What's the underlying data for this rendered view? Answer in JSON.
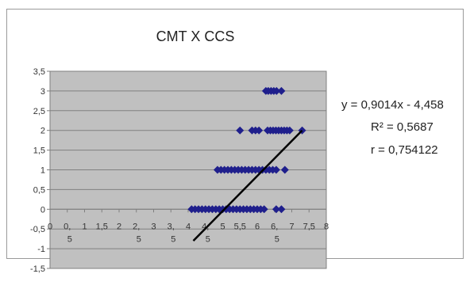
{
  "chart_data": {
    "type": "scatter",
    "title": "CMT X CCS",
    "xlabel": "",
    "ylabel": "",
    "xlim": [
      0,
      8
    ],
    "ylim": [
      -1.5,
      3.5
    ],
    "grid": true,
    "x_tick_labels": [
      {
        "value": 0,
        "line1": "0",
        "line2": ""
      },
      {
        "value": 0.5,
        "line1": "0,",
        "line2": "5"
      },
      {
        "value": 1,
        "line1": "1",
        "line2": ""
      },
      {
        "value": 1.5,
        "line1": "1,5",
        "line2": ""
      },
      {
        "value": 2,
        "line1": "2",
        "line2": ""
      },
      {
        "value": 2.5,
        "line1": "2,",
        "line2": "5"
      },
      {
        "value": 3,
        "line1": "3",
        "line2": ""
      },
      {
        "value": 3.5,
        "line1": "3,",
        "line2": "5"
      },
      {
        "value": 4,
        "line1": "4",
        "line2": ""
      },
      {
        "value": 4.5,
        "line1": "4,",
        "line2": "5"
      },
      {
        "value": 5,
        "line1": "5",
        "line2": ""
      },
      {
        "value": 5.5,
        "line1": "5,5",
        "line2": ""
      },
      {
        "value": 6,
        "line1": "6",
        "line2": ""
      },
      {
        "value": 6.5,
        "line1": "6,",
        "line2": "5"
      },
      {
        "value": 7,
        "line1": "7",
        "line2": ""
      },
      {
        "value": 7.5,
        "line1": "7,5",
        "line2": ""
      },
      {
        "value": 8,
        "line1": "8",
        "line2": ""
      }
    ],
    "y_tick_labels": [
      {
        "value": 3.5,
        "label": "3,5"
      },
      {
        "value": 3,
        "label": "3"
      },
      {
        "value": 2.5,
        "label": "2,5"
      },
      {
        "value": 2,
        "label": "2"
      },
      {
        "value": 1.5,
        "label": "1,5"
      },
      {
        "value": 1,
        "label": "1"
      },
      {
        "value": 0.5,
        "label": "0,5"
      },
      {
        "value": 0,
        "label": "0"
      },
      {
        "value": -0.5,
        "label": "-0,5"
      },
      {
        "value": -1,
        "label": "-1"
      },
      {
        "value": -1.5,
        "label": "-1,5"
      }
    ],
    "series": [
      {
        "points": [
          {
            "x": 6.25,
            "y": 3
          },
          {
            "x": 6.32,
            "y": 3
          },
          {
            "x": 6.4,
            "y": 3
          },
          {
            "x": 6.48,
            "y": 3
          },
          {
            "x": 6.56,
            "y": 3
          },
          {
            "x": 6.7,
            "y": 3
          },
          {
            "x": 5.5,
            "y": 2
          },
          {
            "x": 5.85,
            "y": 2
          },
          {
            "x": 5.95,
            "y": 2
          },
          {
            "x": 6.05,
            "y": 2
          },
          {
            "x": 6.3,
            "y": 2
          },
          {
            "x": 6.38,
            "y": 2
          },
          {
            "x": 6.46,
            "y": 2
          },
          {
            "x": 6.54,
            "y": 2
          },
          {
            "x": 6.62,
            "y": 2
          },
          {
            "x": 6.7,
            "y": 2
          },
          {
            "x": 6.78,
            "y": 2
          },
          {
            "x": 6.86,
            "y": 2
          },
          {
            "x": 6.94,
            "y": 2
          },
          {
            "x": 7.3,
            "y": 2
          },
          {
            "x": 4.85,
            "y": 1
          },
          {
            "x": 4.95,
            "y": 1
          },
          {
            "x": 5.05,
            "y": 1
          },
          {
            "x": 5.15,
            "y": 1
          },
          {
            "x": 5.25,
            "y": 1
          },
          {
            "x": 5.35,
            "y": 1
          },
          {
            "x": 5.45,
            "y": 1
          },
          {
            "x": 5.55,
            "y": 1
          },
          {
            "x": 5.65,
            "y": 1
          },
          {
            "x": 5.75,
            "y": 1
          },
          {
            "x": 5.85,
            "y": 1
          },
          {
            "x": 5.95,
            "y": 1
          },
          {
            "x": 6.05,
            "y": 1
          },
          {
            "x": 6.15,
            "y": 1
          },
          {
            "x": 6.25,
            "y": 1
          },
          {
            "x": 6.35,
            "y": 1
          },
          {
            "x": 6.45,
            "y": 1
          },
          {
            "x": 6.55,
            "y": 1
          },
          {
            "x": 6.8,
            "y": 1
          },
          {
            "x": 4.1,
            "y": 0
          },
          {
            "x": 4.2,
            "y": 0
          },
          {
            "x": 4.3,
            "y": 0
          },
          {
            "x": 4.4,
            "y": 0
          },
          {
            "x": 4.5,
            "y": 0
          },
          {
            "x": 4.6,
            "y": 0
          },
          {
            "x": 4.7,
            "y": 0
          },
          {
            "x": 4.8,
            "y": 0
          },
          {
            "x": 4.9,
            "y": 0
          },
          {
            "x": 5.0,
            "y": 0
          },
          {
            "x": 5.1,
            "y": 0
          },
          {
            "x": 5.2,
            "y": 0
          },
          {
            "x": 5.3,
            "y": 0
          },
          {
            "x": 5.4,
            "y": 0
          },
          {
            "x": 5.5,
            "y": 0
          },
          {
            "x": 5.6,
            "y": 0
          },
          {
            "x": 5.7,
            "y": 0
          },
          {
            "x": 5.8,
            "y": 0
          },
          {
            "x": 5.9,
            "y": 0
          },
          {
            "x": 6.0,
            "y": 0
          },
          {
            "x": 6.1,
            "y": 0
          },
          {
            "x": 6.2,
            "y": 0
          },
          {
            "x": 6.55,
            "y": 0
          },
          {
            "x": 6.7,
            "y": 0
          }
        ],
        "color": "#1f1f8c",
        "marker": "diamond"
      }
    ],
    "trendline": {
      "color": "#000000",
      "x_range": [
        4.15,
        7.3
      ],
      "y_range": [
        -0.8,
        2.0
      ]
    },
    "annotations": [
      "y = 0,9014x - 4,458",
      "R² = 0,5687",
      "r = 0,754122"
    ],
    "colors": {
      "plot_area": "#c0c0c0",
      "frame_border": "#9a9a9a",
      "gridline": "#808080",
      "axis": "#7f7f7f"
    }
  }
}
